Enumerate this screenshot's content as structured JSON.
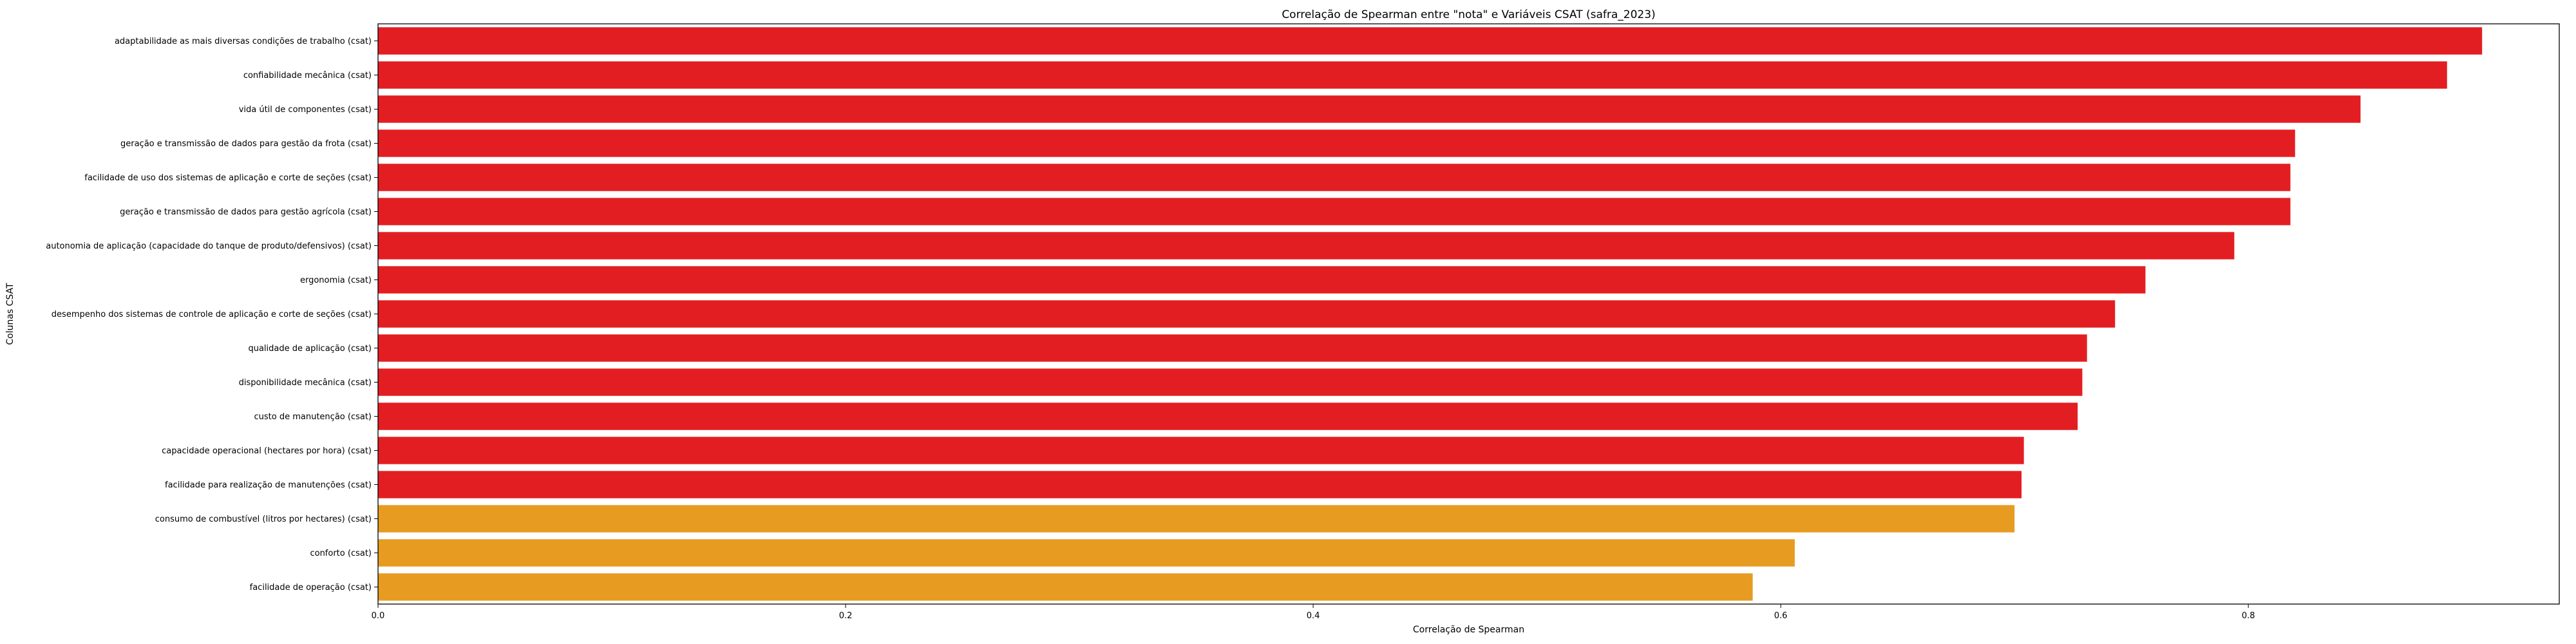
{
  "chart_data": {
    "type": "bar",
    "orientation": "horizontal",
    "title": "Correlação de Spearman entre \"nota\" e Variáveis CSAT (safra_2023)",
    "xlabel": "Correlação de Spearman",
    "ylabel": "Colunas CSAT",
    "xlim": [
      0,
      0.933
    ],
    "xticks": [
      0.0,
      0.2,
      0.4,
      0.6,
      0.8
    ],
    "xtick_labels": [
      "0.0",
      "0.2",
      "0.4",
      "0.6",
      "0.8"
    ],
    "grid": false,
    "colors": {
      "red": "#e31e22",
      "orange": "#e79c21"
    },
    "bars": [
      {
        "category": "adaptabilidade as mais diversas condições de trabalho (csat)",
        "value": 0.9,
        "color": "red"
      },
      {
        "category": "confiabilidade mecânica (csat)",
        "value": 0.885,
        "color": "red"
      },
      {
        "category": "vida útil de componentes (csat)",
        "value": 0.848,
        "color": "red"
      },
      {
        "category": "geração e transmissão de dados para gestão da frota (csat)",
        "value": 0.82,
        "color": "red"
      },
      {
        "category": "facilidade de uso dos sistemas de aplicação e corte de seções (csat)",
        "value": 0.818,
        "color": "red"
      },
      {
        "category": "geração e transmissão de dados para gestão agrícola (csat)",
        "value": 0.818,
        "color": "red"
      },
      {
        "category": "autonomia de aplicação (capacidade do tanque de produto/defensivos) (csat)",
        "value": 0.794,
        "color": "red"
      },
      {
        "category": "ergonomia (csat)",
        "value": 0.756,
        "color": "red"
      },
      {
        "category": "desempenho dos sistemas de controle de aplicação e corte de seções (csat)",
        "value": 0.743,
        "color": "red"
      },
      {
        "category": "qualidade de aplicação (csat)",
        "value": 0.731,
        "color": "red"
      },
      {
        "category": "disponibilidade mecânica (csat)",
        "value": 0.729,
        "color": "red"
      },
      {
        "category": "custo de manutenção (csat)",
        "value": 0.727,
        "color": "red"
      },
      {
        "category": "capacidade operacional (hectares por hora) (csat)",
        "value": 0.704,
        "color": "red"
      },
      {
        "category": "facilidade para realização de manutenções (csat)",
        "value": 0.703,
        "color": "red"
      },
      {
        "category": "consumo de combustível (litros por hectares) (csat)",
        "value": 0.7,
        "color": "orange"
      },
      {
        "category": "conforto (csat)",
        "value": 0.606,
        "color": "orange"
      },
      {
        "category": "facilidade de operação (csat)",
        "value": 0.588,
        "color": "orange"
      }
    ]
  }
}
